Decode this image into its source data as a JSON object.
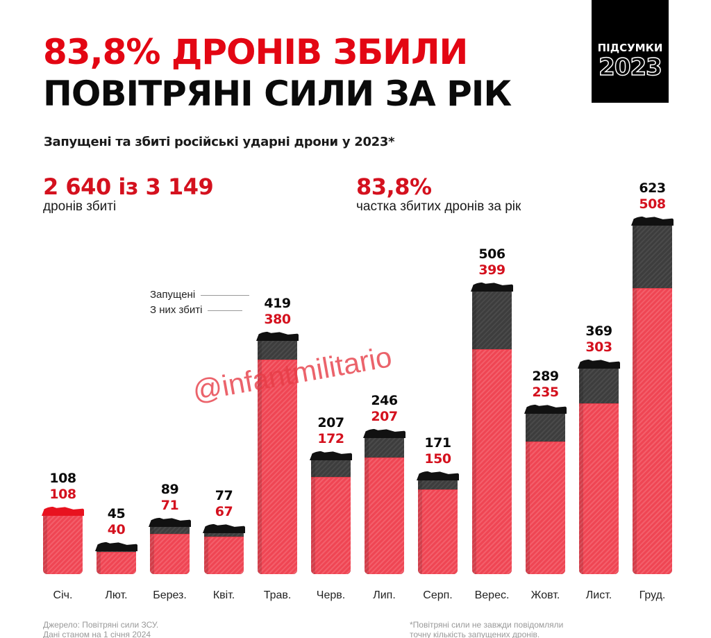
{
  "header": {
    "title_line1": "83,8% ДРОНІВ ЗБИЛИ",
    "title_line2": "ПОВІТРЯНІ СИЛИ ЗА РІК",
    "badge_label": "ПІДСУМКИ",
    "badge_year": "2023",
    "subtitle": "Запущені та збиті російські ударні дрони у 2023*"
  },
  "stats": {
    "left_value": "2 640 із 3 149",
    "left_caption": "дронів збиті",
    "right_value": "83,8%",
    "right_caption": "частка збитих дронів за рік"
  },
  "legend": {
    "launched": "Запущені",
    "shot_down": "З них збиті"
  },
  "watermark": "@infantmilitario",
  "footer": {
    "source_line1": "Джерело: Повітряні сили ЗСУ.",
    "source_line2": "Дані станом на 1 січня 2024",
    "note_line1": "*Повітряні сили не завжди повідомляли",
    "note_line2": "точну кількість запущених дронів."
  },
  "colors": {
    "title_red": "#e30613",
    "shot_down_bar": "#ef4654",
    "launched_bar": "#3d3d3d",
    "value_red": "#d4111e"
  },
  "chart_data": {
    "type": "bar",
    "title": "Запущені та збиті російські ударні дрони у 2023*",
    "xlabel": "",
    "ylabel": "",
    "categories": [
      "Січ.",
      "Лют.",
      "Берез.",
      "Квіт.",
      "Трав.",
      "Черв.",
      "Лип.",
      "Серп.",
      "Верес.",
      "Жовт.",
      "Лист.",
      "Груд."
    ],
    "series": [
      {
        "name": "Запущені",
        "values": [
          108,
          45,
          89,
          77,
          419,
          207,
          246,
          171,
          506,
          289,
          369,
          623
        ]
      },
      {
        "name": "З них збиті",
        "values": [
          108,
          40,
          71,
          67,
          380,
          172,
          207,
          150,
          399,
          235,
          303,
          508
        ]
      }
    ],
    "totals": {
      "launched": 3149,
      "shot_down": 2640,
      "share_percent": 83.8
    },
    "grid": false,
    "legend_position": "inline-annotation",
    "ylim": [
      0,
      650
    ]
  }
}
